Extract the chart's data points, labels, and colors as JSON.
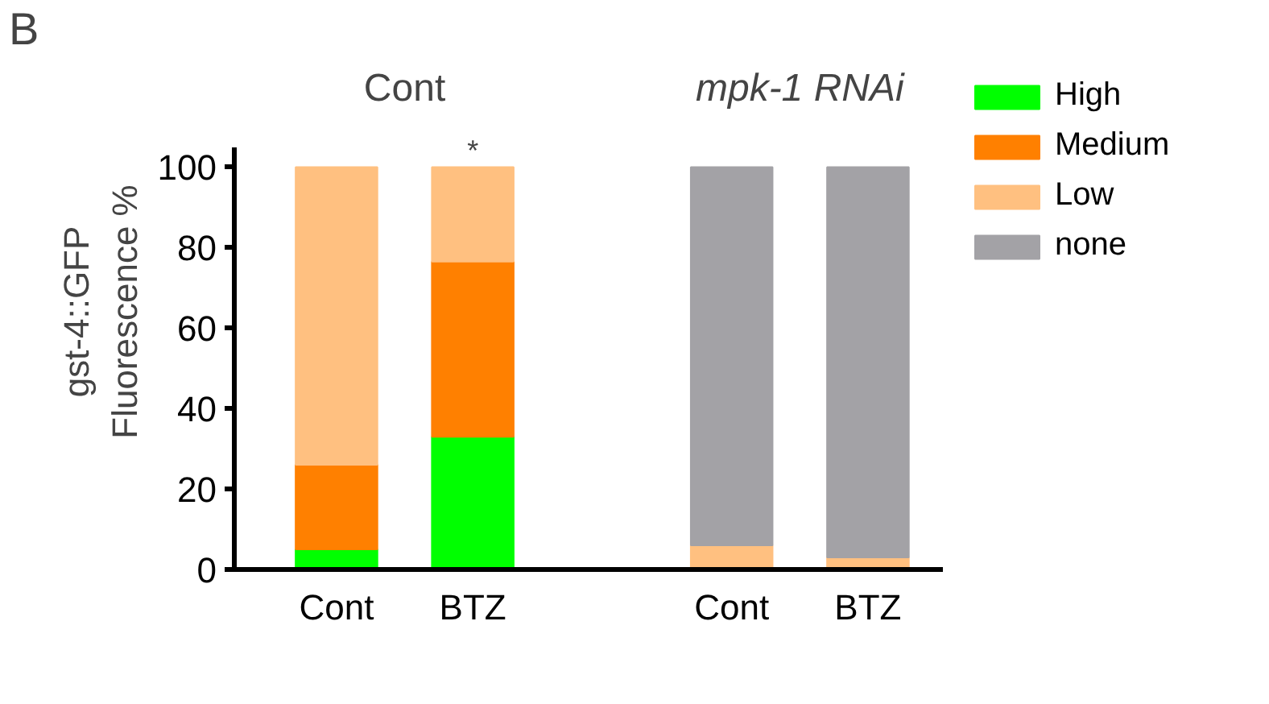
{
  "chart_data": {
    "type": "bar",
    "stacked": true,
    "ylabel": "gst-4::GFP\nFluorescence %",
    "categories": [
      "Cont",
      "BTZ",
      "Cont",
      "BTZ"
    ],
    "series": [
      {
        "name": "High",
        "color": "#00ff00",
        "values": [
          5,
          33,
          null,
          null
        ]
      },
      {
        "name": "Medium",
        "color": "#ff8000",
        "values": [
          21,
          43.5,
          null,
          null
        ]
      },
      {
        "name": "Low",
        "color": "#ffc080",
        "values": [
          74,
          23.5,
          6,
          3
        ]
      },
      {
        "name": "none",
        "color": "#a3a2a6",
        "values": [
          null,
          null,
          94,
          97
        ]
      }
    ],
    "ylim": [
      0,
      105
    ],
    "yticks": [
      0,
      20,
      40,
      60,
      80,
      100
    ],
    "grid": false,
    "legend": "right",
    "title": "B",
    "annotations": [
      "Cont",
      "mpk-1 RNAi",
      "*"
    ]
  }
}
